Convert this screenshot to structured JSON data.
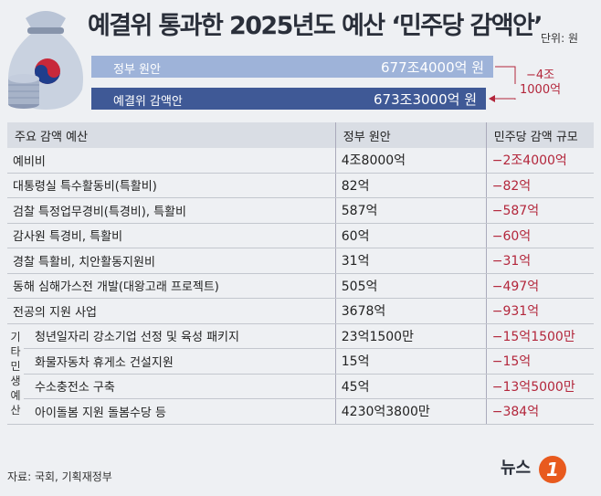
{
  "title": "예결위 통과한 2025년도 예산 ‘민주당 감액안’",
  "unit_label": "단위: 원",
  "summary_bars": [
    {
      "label": "정부 원안",
      "value_text": "677조4000억 원",
      "value": 6774000
    },
    {
      "label": "예결위 감액안",
      "value_text": "673조3000억 원",
      "value": 6733000
    }
  ],
  "difference_line1": "−4조",
  "difference_line2": "1000억",
  "table": {
    "headers": [
      "주요 감액 예산",
      "정부 원안",
      "민주당 감액 규모"
    ],
    "rows": [
      {
        "item": "예비비",
        "gov": "4조8000억",
        "cut": "−2조4000억"
      },
      {
        "item": "대통령실 특수활동비(특활비)",
        "gov": "82억",
        "cut": "−82억"
      },
      {
        "item": "검찰 특정업무경비(특경비), 특활비",
        "gov": "587억",
        "cut": "−587억"
      },
      {
        "item": "감사원 특경비, 특활비",
        "gov": "60억",
        "cut": "−60억"
      },
      {
        "item": "경찰 특활비, 치안활동지원비",
        "gov": "31억",
        "cut": "−31억"
      },
      {
        "item": "동해 심해가스전 개발(대왕고래 프로젝트)",
        "gov": "505억",
        "cut": "−497억"
      },
      {
        "item": "전공의 지원 사업",
        "gov": "3678억",
        "cut": "−931억"
      }
    ],
    "group_label": "기타 민생 예산",
    "group_rows": [
      {
        "item": "청년일자리 강소기업 선정 및 육성 패키지",
        "gov": "23억1500만",
        "cut": "−15억1500만"
      },
      {
        "item": "화물자동차 휴게소 건설지원",
        "gov": "15억",
        "cut": "−15억"
      },
      {
        "item": "수소충전소 구축",
        "gov": "45억",
        "cut": "−13억5000만"
      },
      {
        "item": "아이돌봄 지원 돌봄수당 등",
        "gov": "4230억3800만",
        "cut": "−384억"
      }
    ]
  },
  "source": "자료: 국회, 기획재정부",
  "logo_text": "뉴스",
  "logo_mark": "1",
  "chart_data": {
    "type": "table",
    "title": "예결위 통과한 2025년도 예산 ‘민주당 감액안’",
    "unit": "단위: 원",
    "totals": {
      "정부 원안": "677조4000억 원",
      "예결위 감액안": "673조3000억 원",
      "차이": "−4조 1000억"
    },
    "columns": [
      "주요 감액 예산",
      "정부 원안",
      "민주당 감액 규모"
    ]
  },
  "colors": {
    "bar_light": "#9eb3d9",
    "bar_dark": "#3f5996",
    "negative": "#b3263b",
    "header_bg": "#d9dde4"
  },
  "icons": {
    "bag": "money-bag-icon",
    "coins": "coin-stack-icon"
  }
}
